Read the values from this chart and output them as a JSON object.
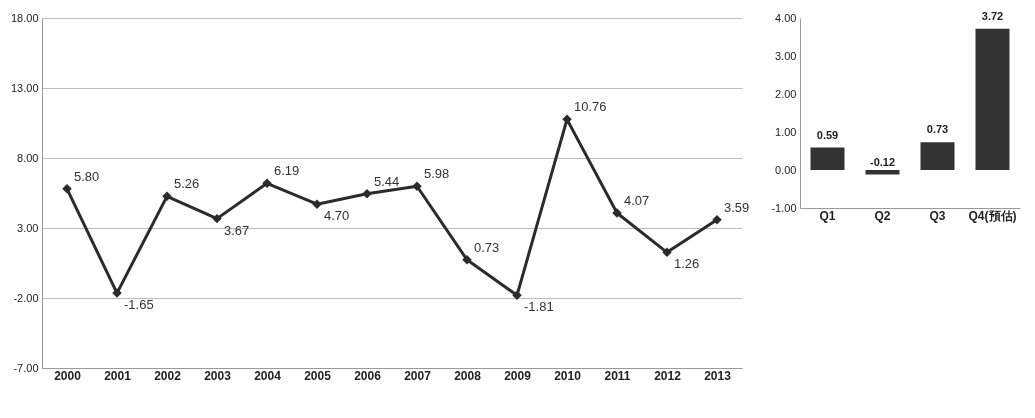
{
  "chart_data": [
    {
      "type": "line",
      "categories": [
        "2000",
        "2001",
        "2002",
        "2003",
        "2004",
        "2005",
        "2006",
        "2007",
        "2008",
        "2009",
        "2010",
        "2011",
        "2012",
        "2013"
      ],
      "series": [
        {
          "color": "#2b2b2b",
          "values": [
            5.8,
            -1.65,
            5.26,
            3.67,
            6.19,
            4.7,
            5.44,
            5.98,
            0.73,
            -1.81,
            10.76,
            4.07,
            1.26,
            3.59
          ],
          "value_labels": [
            "5.80",
            "-1.65",
            "5.26",
            "3.67",
            "6.19",
            "4.70",
            "5.44",
            "5.98",
            "0.73",
            "-1.81",
            "10.76",
            "4.07",
            "1.26",
            "3.59"
          ]
        }
      ],
      "ylim": [
        -7,
        18
      ],
      "yticks": [
        {
          "value": -7,
          "label": "-7.00"
        },
        {
          "value": -2,
          "label": "-2.00"
        },
        {
          "value": 3,
          "label": "3.00"
        },
        {
          "value": 8,
          "label": "8.00"
        },
        {
          "value": 13,
          "label": "13.00"
        },
        {
          "value": 18,
          "label": "18.00"
        }
      ],
      "grid": "y",
      "marker": "diamond",
      "line_style": "solid"
    },
    {
      "type": "bar",
      "categories": [
        "Q1",
        "Q2",
        "Q3",
        "Q4(預估)"
      ],
      "series": [
        {
          "color": "#333333",
          "values": [
            0.59,
            -0.12,
            0.73,
            3.72
          ],
          "value_labels": [
            "0.59",
            "-0.12",
            "0.73",
            "3.72"
          ]
        }
      ],
      "ylim": [
        -1,
        4
      ],
      "yticks": [
        {
          "value": -1,
          "label": "-1.00"
        },
        {
          "value": 0,
          "label": "0.00"
        },
        {
          "value": 1,
          "label": "1.00"
        },
        {
          "value": 2,
          "label": "2.00"
        },
        {
          "value": 3,
          "label": "3.00"
        },
        {
          "value": 4,
          "label": "4.00"
        }
      ]
    }
  ]
}
